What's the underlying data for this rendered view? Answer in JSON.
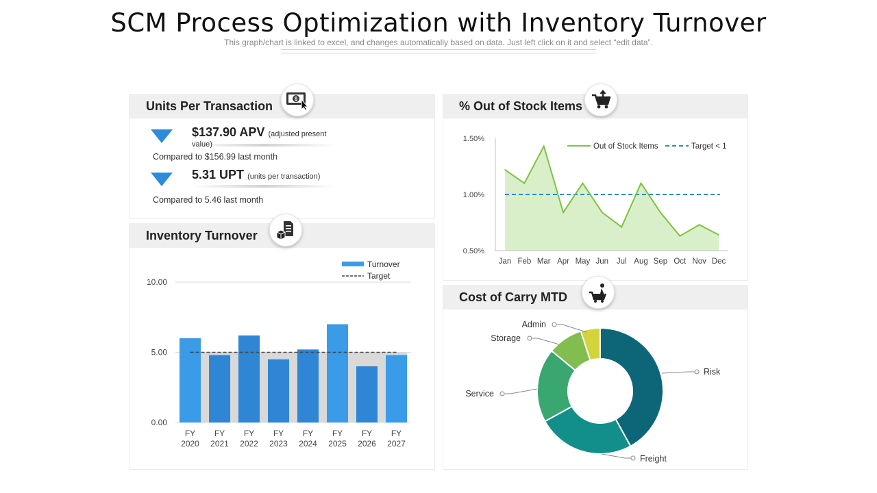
{
  "header": {
    "title": "SCM Process Optimization  with Inventory Turnover",
    "subtitle": "This graph/chart is linked to excel, and changes automatically based on data. Just left click on it and select “edit data”."
  },
  "units_panel": {
    "title": "Units Per Transaction",
    "icon": "money-cursor-icon",
    "kpis": [
      {
        "value": "$137.90 APV",
        "note_open": "(",
        "note": "adjusted present",
        "note_cont": "value)",
        "compare": "Compared  to $156.99  last month",
        "direction": "down"
      },
      {
        "value": "5.31 UPT",
        "note_open": "(",
        "note": "units per transaction)",
        "note_cont": "",
        "compare": "Compared  to 5.46 last month",
        "direction": "down"
      }
    ]
  },
  "inventory_panel": {
    "title": "Inventory Turnover",
    "icon": "boxes-document-icon"
  },
  "stock_panel": {
    "title": "% Out of Stock Items",
    "icon": "cart-arrow-icon"
  },
  "carry_panel": {
    "title": "Cost of Carry MTD",
    "icon": "cart-person-icon"
  },
  "colors": {
    "bar_fill": "#2e86d4",
    "bar_fill_light": "#3a9be8",
    "target_band": "#d9d9d9",
    "line_green": "#7dc242",
    "area_green": "#d8efc9",
    "target_blue": "#2e86d4",
    "donut": [
      "#0d6677",
      "#128f8b",
      "#3aa771",
      "#82bd4f",
      "#d2d43c"
    ]
  },
  "chart_data": [
    {
      "type": "bar",
      "categories": [
        "FY 2020",
        "FY 2021",
        "FY 2022",
        "FY 2023",
        "FY 2024",
        "FY 2025",
        "FY 2026",
        "FY 2027"
      ],
      "series": [
        {
          "name": "Turnover",
          "values": [
            6.0,
            4.8,
            6.2,
            4.5,
            5.2,
            7.0,
            4.0,
            4.8
          ]
        },
        {
          "name": "Target",
          "values": [
            5.0,
            5.0,
            5.0,
            5.0,
            5.0,
            5.0,
            5.0,
            5.0
          ]
        }
      ],
      "yticks": [
        "10.00",
        "5.00",
        "0.00"
      ],
      "ylim": [
        0,
        10
      ],
      "legend": "top-right"
    },
    {
      "type": "area",
      "categories": [
        "Jan",
        "Feb",
        "Mar",
        "Apr",
        "May",
        "Jun",
        "Jul",
        "Aug",
        "Sep",
        "Oct",
        "Nov",
        "Dec"
      ],
      "series": [
        {
          "name": "Out of Stock Items",
          "values": [
            1.22,
            1.1,
            1.43,
            0.84,
            1.1,
            0.84,
            0.71,
            1.1,
            0.84,
            0.63,
            0.73,
            0.64
          ]
        },
        {
          "name": "Target < 1",
          "values": [
            1.0,
            1.0,
            1.0,
            1.0,
            1.0,
            1.0,
            1.0,
            1.0,
            1.0,
            1.0,
            1.0,
            1.0
          ]
        }
      ],
      "yticks": [
        "1.50%",
        "1.00%",
        "0.50%"
      ],
      "ylim": [
        0.5,
        1.5
      ],
      "legend": "top-right"
    },
    {
      "type": "pie",
      "donut": true,
      "labels": [
        "Risk",
        "Freight",
        "Service",
        "Storage",
        "Admin"
      ],
      "values": [
        42,
        25,
        19,
        9,
        5
      ]
    }
  ]
}
